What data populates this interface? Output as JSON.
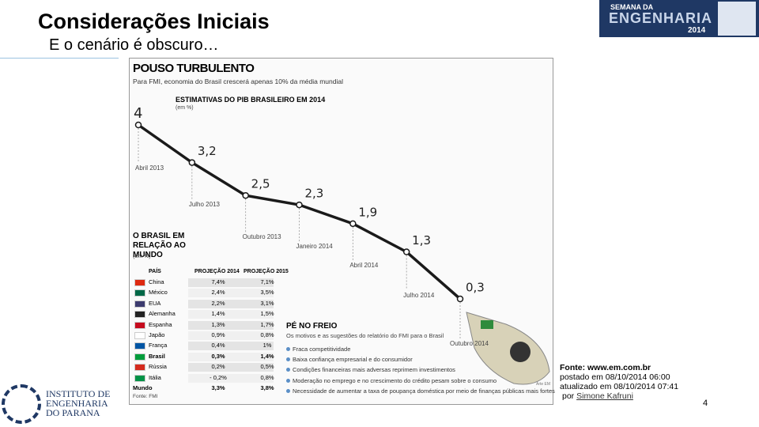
{
  "slide": {
    "title": "Considerações Iniciais",
    "subtitle": "E o cenário é obscuro…",
    "page_number": "4"
  },
  "logo_top": {
    "line1": "SEMANA DA",
    "line2": "ENGENHARIA",
    "year": "2014"
  },
  "logo_bottom": {
    "line1": "INSTITUTO DE",
    "line2": "ENGENHARIA",
    "line3": "DO PARANA"
  },
  "infographic": {
    "title": "POUSO TURBULENTO",
    "subtitle": "Para FMI, economia do Brasil crescerá apenas 10% da média mundial",
    "credit": "Arte EM"
  },
  "chart_data": {
    "type": "line",
    "title": "ESTIMATIVAS DO PIB BRASILEIRO EM 2014",
    "y_label": "(em %)",
    "categories": [
      "Abril 2013",
      "Julho 2013",
      "Outubro 2013",
      "Janeiro 2014",
      "Abril 2014",
      "Julho 2014",
      "Outubro 2014"
    ],
    "values": [
      4,
      3.2,
      2.5,
      2.3,
      1.9,
      1.3,
      0.3
    ],
    "value_labels": [
      "4",
      "3,2",
      "2,5",
      "2,3",
      "1,9",
      "1,3",
      "0,3"
    ],
    "color": "#1a1a1a"
  },
  "table": {
    "title": "O BRASIL EM RELAÇÃO AO MUNDO",
    "unit": "(em %)",
    "header": [
      "PAÍS",
      "PROJEÇÃO 2014",
      "PROJEÇÃO 2015"
    ],
    "rows": [
      [
        "China",
        "7,4%",
        "7,1%"
      ],
      [
        "México",
        "2,4%",
        "3,5%"
      ],
      [
        "EUA",
        "2,2%",
        "3,1%"
      ],
      [
        "Alemanha",
        "1,4%",
        "1,5%"
      ],
      [
        "Espanha",
        "1,3%",
        "1,7%"
      ],
      [
        "Japão",
        "0,9%",
        "0,8%"
      ],
      [
        "França",
        "0,4%",
        "1%"
      ],
      [
        "Brasil",
        "0,3%",
        "1,4%"
      ],
      [
        "Rússia",
        "0,2%",
        "0,5%"
      ],
      [
        "Itália",
        "- 0,2%",
        "0,8%"
      ],
      [
        "Mundo",
        "3,3%",
        "3,8%"
      ]
    ],
    "source": "Fonte: FMI"
  },
  "reasons": {
    "title": "PÉ NO FREIO",
    "subtitle": "Os motivos e as sugestões do relatório do FMI para o Brasil",
    "items": [
      "Fraca competitividade",
      "Baixa confiança empresarial e do consumidor",
      "Condições financeiras mais adversas reprimem investimentos",
      "Moderação no emprego e no crescimento do crédito pesam sobre o consumo",
      "Necessidade de aumentar a taxa de poupança doméstica por meio de finanças públicas mais fortes"
    ]
  },
  "source_block": {
    "source": "Fonte: www.em.com.br",
    "posted": "postado em 08/10/2014 06:00",
    "updated": "atualizado em 08/10/2014 07:41",
    "by": "por",
    "author": "Simone Kafruni"
  }
}
